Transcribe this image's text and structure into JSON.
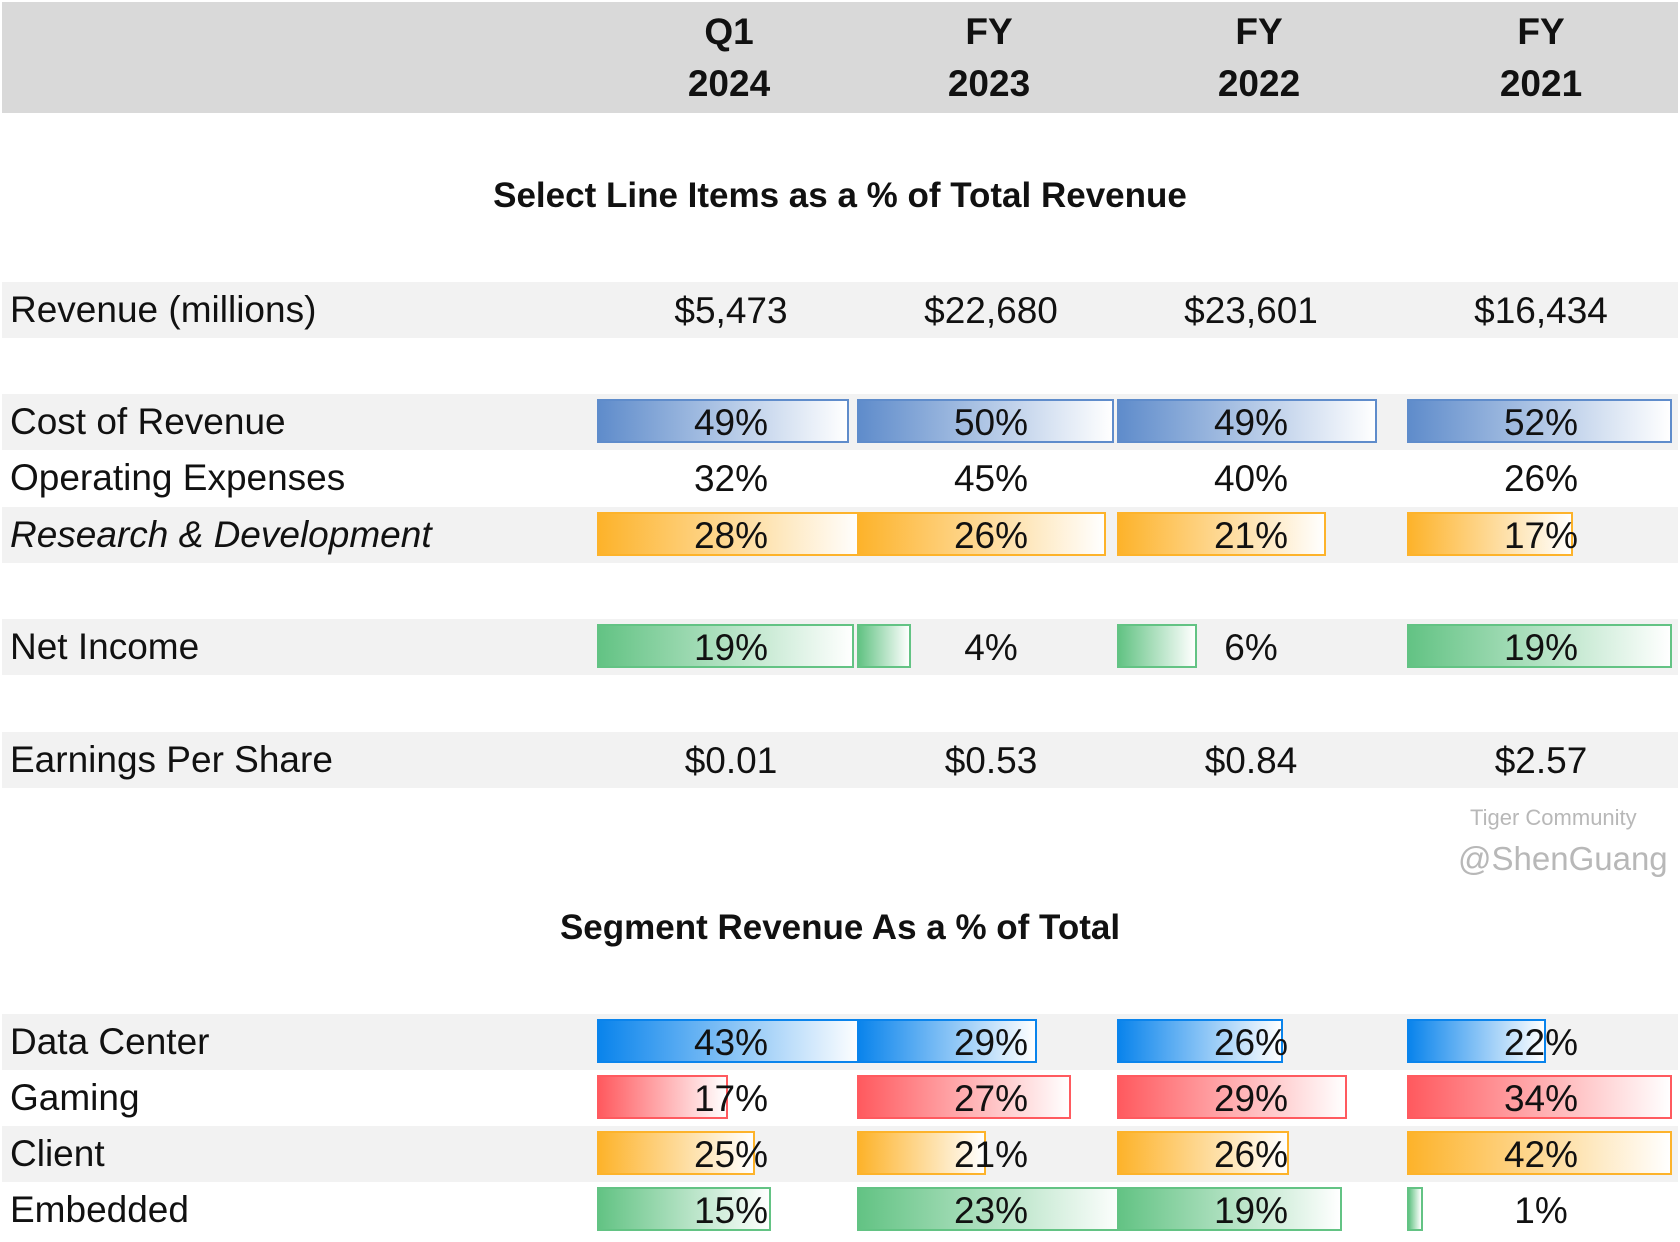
{
  "columns": [
    {
      "line1": "Q1",
      "line2": "2024"
    },
    {
      "line1": "FY",
      "line2": "2023"
    },
    {
      "line1": "FY",
      "line2": "2022"
    },
    {
      "line1": "FY",
      "line2": "2021"
    }
  ],
  "section1_title": "Select Line Items as a % of Total Revenue",
  "section2_title": "Segment Revenue As a % of Total",
  "colors": {
    "header_bg": "#d9d9d9",
    "band_bg": "#f2f2f2",
    "cost_bar": "#5f8ccb",
    "rd_bar": "#fdb32b",
    "net_income_bar": "#63c384",
    "data_center_bar": "#0a84ec",
    "gaming_bar": "#ff5a5f",
    "client_bar": "#fdb32b",
    "embedded_bar": "#63c384"
  },
  "rows": [
    {
      "id": "revenue",
      "label": "Revenue (millions)",
      "italic": false,
      "band": true,
      "values": [
        "$5,473",
        "$22,680",
        "$23,601",
        "$16,434"
      ]
    },
    {
      "id": "cost",
      "label": "Cost of Revenue",
      "italic": false,
      "band": true,
      "color": "cost_bar",
      "values": [
        "49%",
        "50%",
        "49%",
        "52%"
      ],
      "bar_fill": [
        0.94,
        0.96,
        0.97,
        0.99
      ]
    },
    {
      "id": "opex",
      "label": "Operating Expenses",
      "italic": false,
      "band": false,
      "values": [
        "32%",
        "45%",
        "40%",
        "26%"
      ]
    },
    {
      "id": "rd",
      "label": "Research & Development",
      "italic": true,
      "band": true,
      "color": "rd_bar",
      "values": [
        "28%",
        "26%",
        "21%",
        "17%"
      ],
      "bar_fill": [
        0.99,
        0.93,
        0.78,
        0.62
      ]
    },
    {
      "id": "net-income",
      "label": "Net Income",
      "italic": false,
      "band": true,
      "color": "net_income_bar",
      "values": [
        "19%",
        "4%",
        "6%",
        "19%"
      ],
      "bar_fill": [
        0.96,
        0.2,
        0.3,
        0.99
      ]
    },
    {
      "id": "eps",
      "label": "Earnings Per Share",
      "italic": false,
      "band": true,
      "values": [
        "$0.01",
        "$0.53",
        "$0.84",
        "$2.57"
      ]
    },
    {
      "id": "data-center",
      "label": "Data Center",
      "italic": false,
      "band": true,
      "color": "data_center_bar",
      "values": [
        "43%",
        "29%",
        "26%",
        "22%"
      ],
      "bar_fill": [
        0.99,
        0.67,
        0.62,
        0.52
      ]
    },
    {
      "id": "gaming",
      "label": "Gaming",
      "italic": false,
      "band": false,
      "color": "gaming_bar",
      "values": [
        "17%",
        "27%",
        "29%",
        "34%"
      ],
      "bar_fill": [
        0.49,
        0.8,
        0.86,
        0.99
      ]
    },
    {
      "id": "client",
      "label": "Client",
      "italic": false,
      "band": true,
      "color": "client_bar",
      "values": [
        "25%",
        "21%",
        "26%",
        "42%"
      ],
      "bar_fill": [
        0.59,
        0.48,
        0.64,
        0.99
      ]
    },
    {
      "id": "embedded",
      "label": "Embedded",
      "italic": false,
      "band": false,
      "color": "embedded_bar",
      "values": [
        "15%",
        "23%",
        "19%",
        "1%"
      ],
      "bar_fill": [
        0.65,
        1.0,
        0.84,
        0.06
      ]
    }
  ],
  "watermark": {
    "line1": "Tiger Community",
    "line2": "@ShenGuang"
  }
}
